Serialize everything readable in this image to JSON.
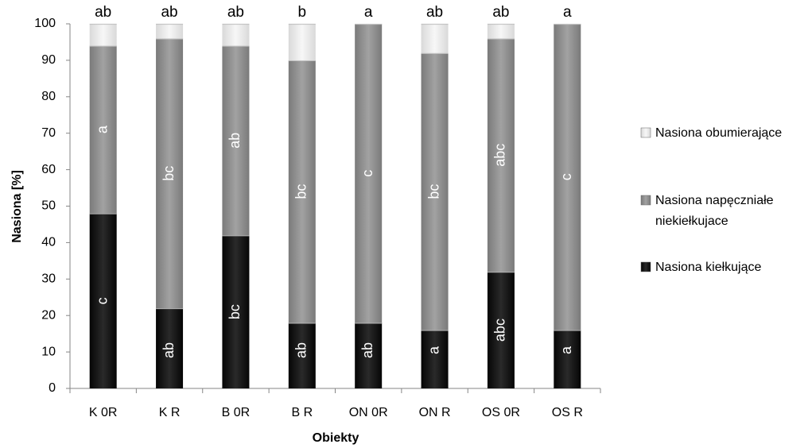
{
  "chart_data": {
    "type": "bar",
    "stacked": true,
    "percent": true,
    "categories": [
      "K 0R",
      "K R",
      "B 0R",
      "B R",
      "ON 0R",
      "ON R",
      "OS 0R",
      "OS R"
    ],
    "series": [
      {
        "name": "Nasiona kiełkujące",
        "color": "#111111",
        "values": [
          48,
          22,
          42,
          18,
          18,
          16,
          32,
          16
        ],
        "labels": [
          "c",
          "ab",
          "bc",
          "ab",
          "ab",
          "a",
          "abc",
          "a"
        ]
      },
      {
        "name": "Nasiona napęczniałe niekiełkujace",
        "color": "#8c8c8c",
        "values": [
          46,
          74,
          52,
          72,
          82,
          76,
          64,
          84
        ],
        "labels": [
          "a",
          "bc",
          "ab",
          "bc",
          "c",
          "bc",
          "abc",
          "c"
        ]
      },
      {
        "name": "Nasiona obumierające",
        "color": "#eeeeee",
        "values": [
          6,
          4,
          6,
          10,
          0,
          8,
          4,
          0
        ],
        "labels": [
          "ab",
          "ab",
          "ab",
          "b",
          "a",
          "ab",
          "ab",
          "a"
        ]
      }
    ],
    "xlabel": "Obiekty",
    "ylabel": "Nasiona [%]",
    "ylim": [
      0,
      100
    ],
    "yticks": [
      0,
      10,
      20,
      30,
      40,
      50,
      60,
      70,
      80,
      90,
      100
    ],
    "grid": false,
    "legend_position": "right",
    "legend_order": [
      "Nasiona obumierające",
      "Nasiona napęczniałe niekiełkujace",
      "Nasiona kiełkujące"
    ]
  }
}
